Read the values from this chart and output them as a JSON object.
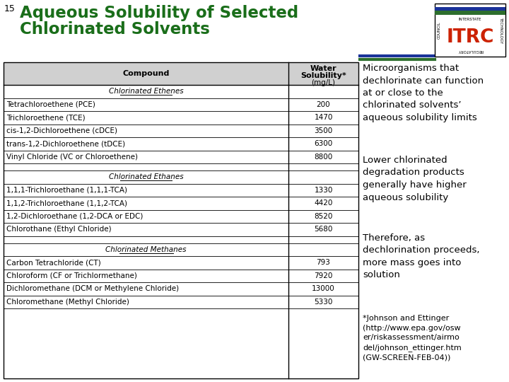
{
  "slide_number": "15",
  "title_line1": "Aqueous Solubility of Selected",
  "title_line2": "Chlorinated Solvents",
  "title_color": "#1a6e1a",
  "background_color": "#ffffff",
  "section_headers": [
    "Chlorinated Ethenes",
    "Chlorinated Ethanes",
    "Chlorinated Methanes"
  ],
  "rows_ethenes": [
    [
      "Tetrachloroethene (PCE)",
      "200"
    ],
    [
      "Trichloroethene (TCE)",
      "1470"
    ],
    [
      "cis-1,2-Dichloroethene (cDCE)",
      "3500"
    ],
    [
      "trans-1,2-Dichloroethene (tDCE)",
      "6300"
    ],
    [
      "Vinyl Chloride (VC or Chloroethene)",
      "8800"
    ]
  ],
  "rows_ethanes": [
    [
      "1,1,1-Trichloroethane (1,1,1-TCA)",
      "1330"
    ],
    [
      "1,1,2-Trichloroethane (1,1,2-TCA)",
      "4420"
    ],
    [
      "1,2-Dichloroethane (1,2-DCA or EDC)",
      "8520"
    ],
    [
      "Chlorothane (Ethyl Chloride)",
      "5680"
    ]
  ],
  "rows_methanes": [
    [
      "Carbon Tetrachloride (CT)",
      "793"
    ],
    [
      "Chloroform (CF or Trichlormethane)",
      "7920"
    ],
    [
      "Dichloromethane (DCM or Methylene Chloride)",
      "13000"
    ],
    [
      "Chloromethane (Methyl Chloride)",
      "5330"
    ]
  ],
  "right_text": [
    "Microorganisms that\ndechlorinate can function\nat or close to the\nchlorinated solvents’\naqueous solubility limits",
    "Lower chlorinated\ndegradation products\ngenerally have higher\naqueous solubility",
    "Therefore, as\ndechlorination proceeds,\nmore mass goes into\nsolution",
    "*Johnson and Ettinger\n(http://www.epa.gov/osw\ner/riskassessment/airmo\ndel/johnson_ettinger.htm\n(GW-SCREEN-FEB-04))"
  ]
}
